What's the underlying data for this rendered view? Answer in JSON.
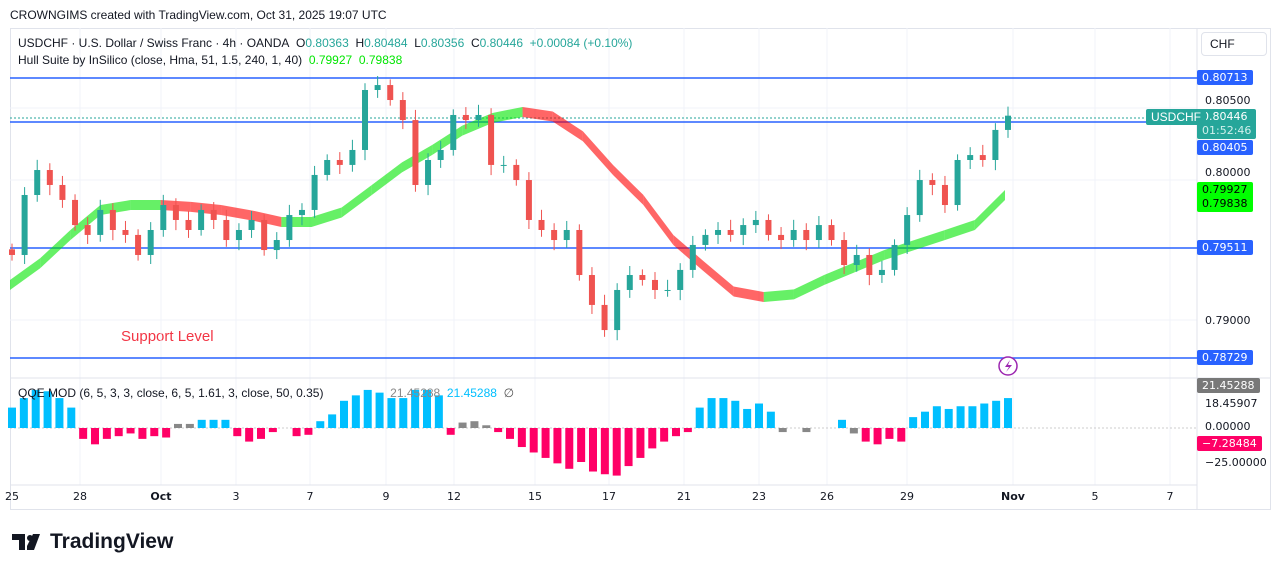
{
  "credit": "CROWNGIMS created with TradingView.com, Oct 31, 2025 19:07 UTC",
  "legend": {
    "symbol": "USDCHF · U.S. Dollar / Swiss Franc · 4h · OANDA",
    "o_label": "O",
    "o": "0.80363",
    "h_label": "H",
    "h": "0.80484",
    "l_label": "L",
    "l": "0.80356",
    "c_label": "C",
    "c": "0.80446",
    "change": "+0.00084 (+0.10%)",
    "hull": "Hull Suite by InSilico (close, Hma, 51, 1.5, 240, 1, 40)",
    "hull_v1": "0.79927",
    "hull_v2": "0.79838"
  },
  "currency": "CHF",
  "annotation": "Support Level",
  "colors": {
    "up": "#26a69a",
    "down": "#ef5350",
    "hull_up": "#00e600",
    "hull_down": "#ff0000",
    "line": "#2962ff",
    "qqe_blue": "#00bfff",
    "qqe_red": "#ff0066",
    "qqe_gray": "#888888"
  },
  "price_axis": [
    "0.80500",
    "0.80000",
    "0.79000"
  ],
  "levels": [
    {
      "price": 0.80713,
      "label": "0.80713"
    },
    {
      "price": 0.80405,
      "label": "0.80405"
    },
    {
      "price": 0.79511,
      "label": "0.79511"
    },
    {
      "price": 0.78729,
      "label": "0.78729"
    }
  ],
  "current": {
    "symbol": "USDCHF",
    "price": "0.80446",
    "countdown": "01:52:46"
  },
  "hull_labels": [
    "0.79927",
    "0.79838"
  ],
  "qqe": {
    "title": "QQE MOD (6, 5, 3, 3, close, 6, 5, 1.61, 3, close, 50, 0.35)",
    "v1": "21.45288",
    "v2": "21.45288",
    "v3": "∅",
    "axis": [
      "18.45907",
      "0.00000",
      "−25.00000"
    ],
    "last_gray": "21.45288",
    "last_red": "−7.28484"
  },
  "time_axis": [
    "25",
    "28",
    "Oct",
    "3",
    "7",
    "9",
    "12",
    "15",
    "17",
    "21",
    "23",
    "26",
    "29",
    "Nov",
    "5",
    "7"
  ],
  "brand": "TradingView",
  "chart_data": {
    "type": "candlestick",
    "ylim": [
      0.786,
      0.8085
    ],
    "closes": [
      0.79459,
      0.79884,
      0.80061,
      0.79955,
      0.79849,
      0.79671,
      0.79601,
      0.79778,
      0.79636,
      0.79601,
      0.79459,
      0.79636,
      0.79813,
      0.79707,
      0.79636,
      0.79778,
      0.79707,
      0.79565,
      0.79636,
      0.79707,
      0.79494,
      0.79565,
      0.79742,
      0.79778,
      0.80026,
      0.80132,
      0.80097,
      0.80203,
      0.80628,
      0.80663,
      0.80557,
      0.80415,
      0.79955,
      0.80132,
      0.80203,
      0.80451,
      0.80415,
      0.80451,
      0.80097,
      0.80097,
      0.7999,
      0.79707,
      0.79636,
      0.79565,
      0.79636,
      0.79317,
      0.79105,
      0.78927,
      0.79211,
      0.79317,
      0.79282,
      0.79211,
      0.79211,
      0.79353,
      0.7953,
      0.79601,
      0.79636,
      0.79601,
      0.79671,
      0.79707,
      0.79601,
      0.79565,
      0.79636,
      0.79565,
      0.79671,
      0.79565,
      0.79388,
      0.79459,
      0.79317,
      0.79353,
      0.7953,
      0.79742,
      0.7999,
      0.79955,
      0.79813,
      0.80132,
      0.80167,
      0.80132,
      0.80345,
      0.80446
    ],
    "hull_mid": [
      0.79246,
      0.794,
      0.796,
      0.79778,
      0.79813,
      0.79813,
      0.798,
      0.79778,
      0.7974,
      0.79693,
      0.79693,
      0.7976,
      0.79919,
      0.8008,
      0.80203,
      0.8034,
      0.8043,
      0.80472,
      0.8044,
      0.803,
      0.80061,
      0.7985,
      0.79565,
      0.7938,
      0.792,
      0.79161,
      0.7918,
      0.79282,
      0.7937,
      0.79459,
      0.7953,
      0.796,
      0.79671,
      0.79884
    ],
    "qqe_values": [
      15,
      22,
      28,
      27,
      22,
      15,
      -8,
      -12,
      -8,
      -6,
      -4,
      -8,
      -6,
      -7,
      3,
      3,
      6,
      6,
      6,
      -6,
      -10,
      -8,
      -3,
      0,
      -6,
      -5,
      5,
      10,
      20,
      24,
      28,
      26,
      22,
      22,
      28,
      28,
      24,
      -5,
      4,
      5,
      2,
      -3,
      -8,
      -14,
      -18,
      -22,
      -26,
      -30,
      -25,
      -32,
      -34,
      -35,
      -28,
      -22,
      -15,
      -10,
      -6,
      -3,
      15,
      22,
      22,
      20,
      14,
      18,
      12,
      -3,
      0,
      -3,
      0,
      0,
      6,
      -4,
      -10,
      -12,
      -8,
      -10,
      8,
      12,
      16,
      14,
      16,
      16,
      18,
      20,
      22
    ],
    "qqe_gray_idx": [
      14,
      15,
      38,
      39,
      40,
      65,
      67,
      71
    ]
  }
}
